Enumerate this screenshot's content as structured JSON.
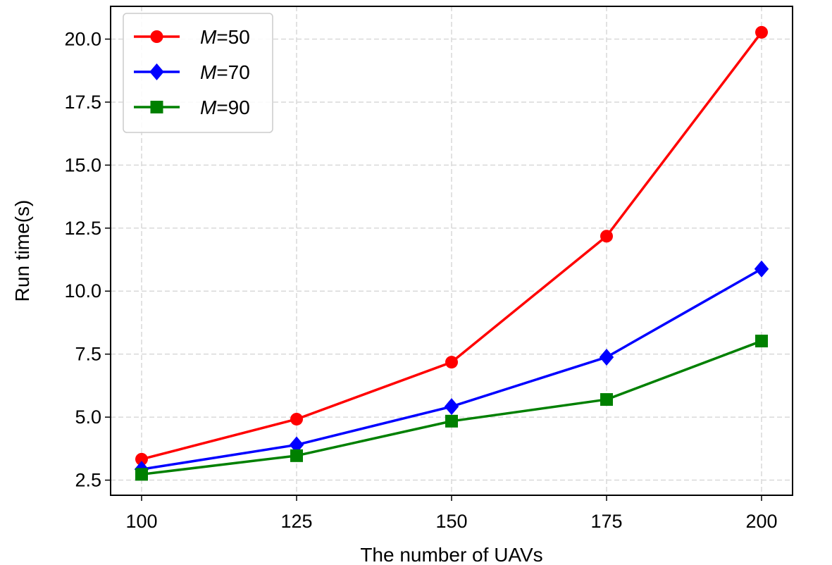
{
  "chart_data": {
    "type": "line",
    "xlabel": "The number of UAVs",
    "ylabel": "Run time(s)",
    "x": [
      100,
      125,
      150,
      175,
      200
    ],
    "xlim": [
      95,
      205
    ],
    "ylim": [
      1.9,
      21.3
    ],
    "xticks": [
      "100",
      "125",
      "150",
      "175",
      "200"
    ],
    "yticks": [
      "2.5",
      "5.0",
      "7.5",
      "10.0",
      "12.5",
      "15.0",
      "17.5",
      "20.0"
    ],
    "grid": true,
    "legend_position": "top-left",
    "series": [
      {
        "name": "M=50",
        "name_italic": "M",
        "name_rest": "=50",
        "color": "#ff0000",
        "marker": "circle",
        "values": [
          3.33,
          4.92,
          7.18,
          12.18,
          20.27
        ]
      },
      {
        "name": "M=70",
        "name_italic": "M",
        "name_rest": "=70",
        "color": "#0000ff",
        "marker": "diamond",
        "values": [
          2.93,
          3.9,
          5.42,
          7.38,
          10.88
        ]
      },
      {
        "name": "M=90",
        "name_italic": "M",
        "name_rest": "=90",
        "color": "#008000",
        "marker": "square",
        "values": [
          2.73,
          3.47,
          4.84,
          5.7,
          8.02
        ]
      }
    ]
  }
}
